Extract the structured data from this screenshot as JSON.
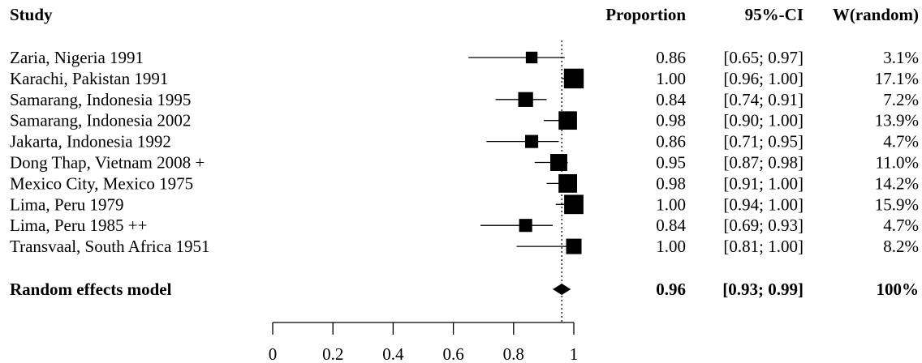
{
  "chart_data": {
    "type": "forest",
    "headers": {
      "study": "Study",
      "proportion": "Proportion",
      "ci": "95%-CI",
      "weight": "W(random)"
    },
    "studies": [
      {
        "label": "Zaria, Nigeria 1991",
        "est": 0.86,
        "lo": 0.65,
        "hi": 0.97,
        "est_text": "0.86",
        "ci_text": "[0.65; 0.97]",
        "weight_text": "3.1%",
        "weight": 3.1
      },
      {
        "label": "Karachi, Pakistan 1991",
        "est": 1.0,
        "lo": 0.96,
        "hi": 1.0,
        "est_text": "1.00",
        "ci_text": "[0.96; 1.00]",
        "weight_text": "17.1%",
        "weight": 17.1
      },
      {
        "label": "Samarang, Indonesia 1995",
        "est": 0.84,
        "lo": 0.74,
        "hi": 0.91,
        "est_text": "0.84",
        "ci_text": "[0.74; 0.91]",
        "weight_text": "7.2%",
        "weight": 7.2
      },
      {
        "label": "Samarang, Indonesia 2002",
        "est": 0.98,
        "lo": 0.9,
        "hi": 1.0,
        "est_text": "0.98",
        "ci_text": "[0.90; 1.00]",
        "weight_text": "13.9%",
        "weight": 13.9
      },
      {
        "label": "Jakarta, Indonesia 1992",
        "est": 0.86,
        "lo": 0.71,
        "hi": 0.95,
        "est_text": "0.86",
        "ci_text": "[0.71; 0.95]",
        "weight_text": "4.7%",
        "weight": 4.7
      },
      {
        "label": "Dong Thap, Vietnam 2008 +",
        "est": 0.95,
        "lo": 0.87,
        "hi": 0.98,
        "est_text": "0.95",
        "ci_text": "[0.87; 0.98]",
        "weight_text": "11.0%",
        "weight": 11.0
      },
      {
        "label": "Mexico City, Mexico 1975",
        "est": 0.98,
        "lo": 0.91,
        "hi": 1.0,
        "est_text": "0.98",
        "ci_text": "[0.91; 1.00]",
        "weight_text": "14.2%",
        "weight": 14.2
      },
      {
        "label": "Lima, Peru 1979",
        "est": 1.0,
        "lo": 0.94,
        "hi": 1.0,
        "est_text": "1.00",
        "ci_text": "[0.94; 1.00]",
        "weight_text": "15.9%",
        "weight": 15.9
      },
      {
        "label": "Lima, Peru 1985 ++",
        "est": 0.84,
        "lo": 0.69,
        "hi": 0.93,
        "est_text": "0.84",
        "ci_text": "[0.69; 0.93]",
        "weight_text": "4.7%",
        "weight": 4.7
      },
      {
        "label": "Transvaal, South Africa 1951",
        "est": 1.0,
        "lo": 0.81,
        "hi": 1.0,
        "est_text": "1.00",
        "ci_text": "[0.81; 1.00]",
        "weight_text": "8.2%",
        "weight": 8.2
      }
    ],
    "summary": {
      "label": "Random effects model",
      "est": 0.96,
      "lo": 0.93,
      "hi": 0.99,
      "est_text": "0.96",
      "ci_text": "[0.93; 0.99]",
      "weight_text": "100%"
    },
    "xlim": [
      0,
      1
    ],
    "ticks": [
      "0",
      "0.2",
      "0.4",
      "0.6",
      "0.8",
      "1"
    ],
    "tick_values": [
      0,
      0.2,
      0.4,
      0.6,
      0.8,
      1
    ],
    "reference_line": 0.96,
    "colors": {
      "ink": "#000000"
    }
  }
}
